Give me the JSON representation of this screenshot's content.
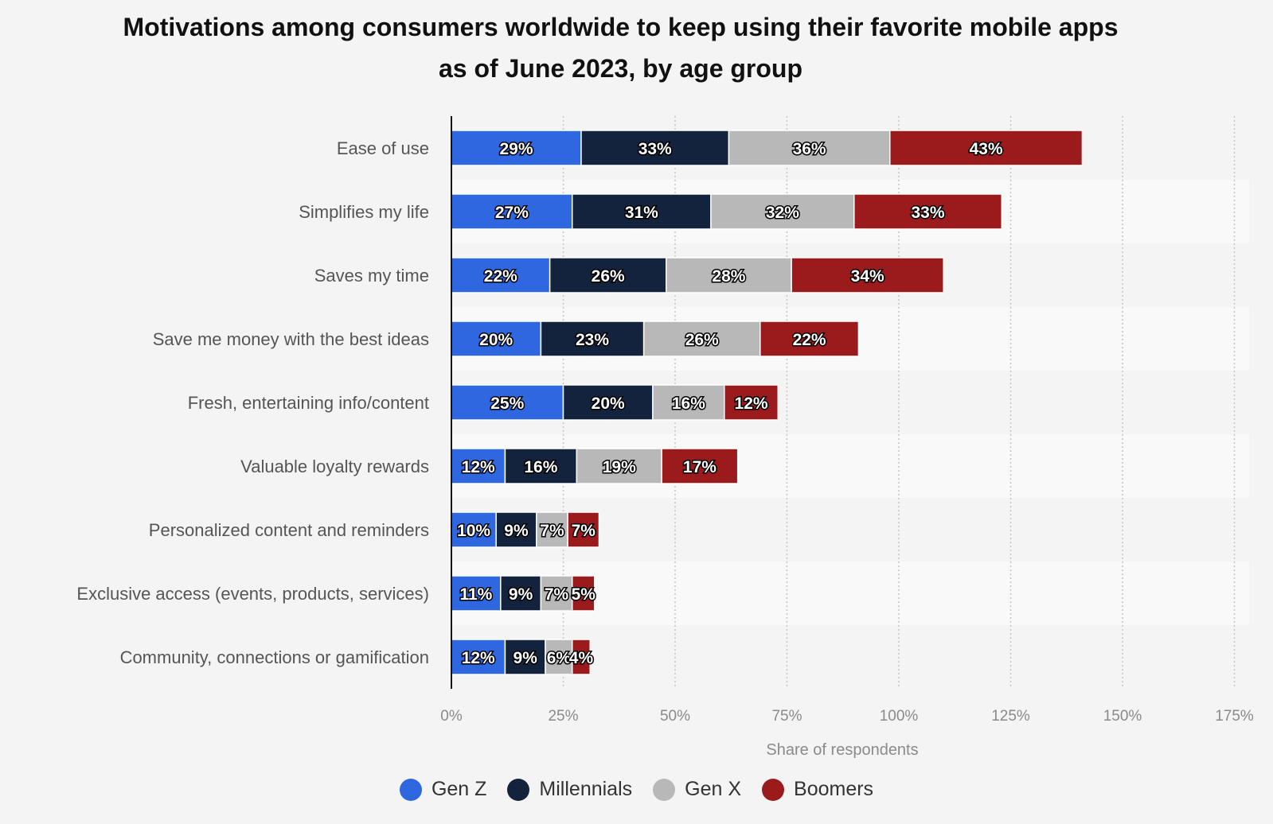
{
  "title": {
    "line1": "Motivations among consumers worldwide to keep using their favorite mobile apps",
    "line2": "as of June 2023, by age group"
  },
  "chart_data": {
    "type": "bar",
    "orientation": "horizontal",
    "stacked": true,
    "title": "Motivations among consumers worldwide to keep using their favorite mobile apps as of June 2023, by age group",
    "xlabel": "Share of respondents",
    "ylabel": "",
    "xlim": [
      0,
      175
    ],
    "xticks": [
      0,
      25,
      50,
      75,
      100,
      125,
      150,
      175
    ],
    "xtick_labels": [
      "0%",
      "25%",
      "50%",
      "75%",
      "100%",
      "125%",
      "150%",
      "175%"
    ],
    "grid": true,
    "legend_position": "bottom",
    "categories": [
      "Ease of use",
      "Simplifies my life",
      "Saves my time",
      "Save me money with the best ideas",
      "Fresh, entertaining info/content",
      "Valuable loyalty rewards",
      "Personalized content and reminders",
      "Exclusive access (events, products, services)",
      "Community, connections or gamification"
    ],
    "series": [
      {
        "name": "Gen Z",
        "color": "#2f67e0",
        "values": [
          29,
          27,
          22,
          20,
          25,
          12,
          10,
          11,
          12
        ]
      },
      {
        "name": "Millennials",
        "color": "#13233d",
        "values": [
          33,
          31,
          26,
          23,
          20,
          16,
          9,
          9,
          9
        ]
      },
      {
        "name": "Gen X",
        "color": "#b8b8b8",
        "values": [
          36,
          32,
          28,
          26,
          16,
          19,
          7,
          7,
          6
        ]
      },
      {
        "name": "Boomers",
        "color": "#9b1b1c",
        "values": [
          43,
          33,
          34,
          22,
          12,
          17,
          7,
          5,
          4
        ]
      }
    ],
    "value_suffix": "%"
  }
}
